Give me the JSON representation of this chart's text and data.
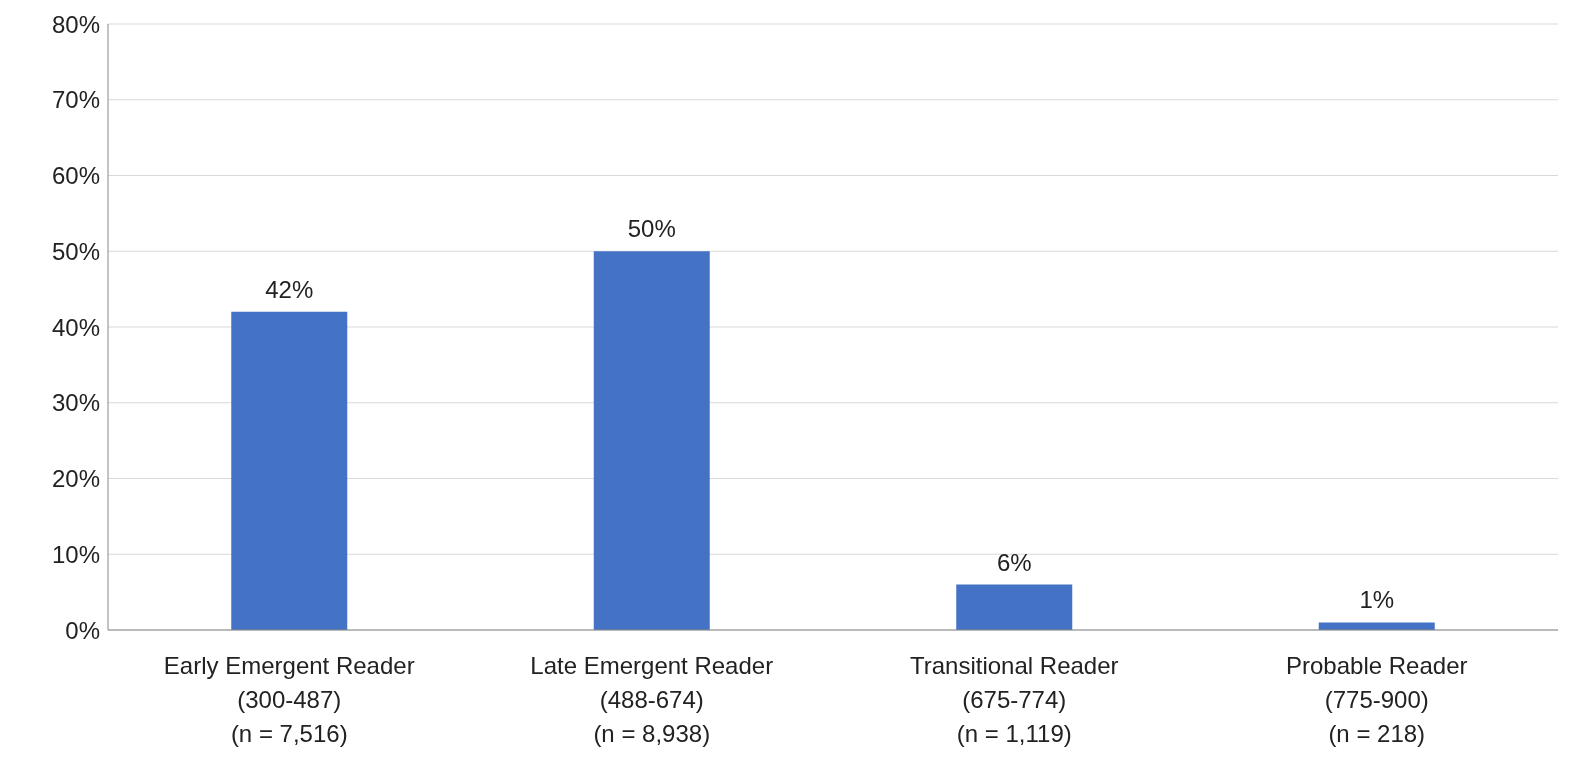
{
  "chart_data": {
    "type": "bar",
    "categories": [
      "Early Emergent Reader\n(300-487)\n(n = 7,516)",
      "Late Emergent Reader\n(488-674)\n(n = 8,938)",
      "Transitional Reader\n(675-774)\n(n = 1,119)",
      "Probable Reader\n(775-900)\n(n = 218)"
    ],
    "values": [
      42,
      50,
      6,
      1
    ],
    "value_labels": [
      "42%",
      "50%",
      "6%",
      "1%"
    ],
    "color": "#4472c4",
    "ylim": [
      0,
      80
    ],
    "yticks": [
      {
        "value": 0,
        "label": "0%"
      },
      {
        "value": 10,
        "label": "10%"
      },
      {
        "value": 20,
        "label": "20%"
      },
      {
        "value": 30,
        "label": "30%"
      },
      {
        "value": 40,
        "label": "40%"
      },
      {
        "value": 50,
        "label": "50%"
      },
      {
        "value": 60,
        "label": "60%"
      },
      {
        "value": 70,
        "label": "70%"
      },
      {
        "value": 80,
        "label": "80%"
      }
    ],
    "grid": "y",
    "legend": false
  }
}
